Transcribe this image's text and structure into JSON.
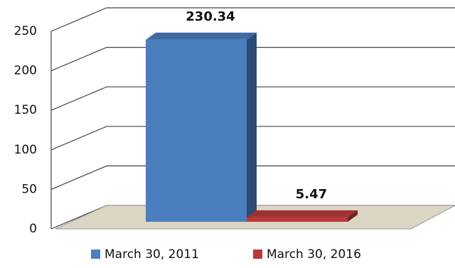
{
  "chart_data": {
    "type": "bar3d",
    "series": [
      {
        "name": "March 30, 2011",
        "color": "#4a7ebf",
        "values": [
          230.34
        ]
      },
      {
        "name": "March 30, 2016",
        "color": "#b9393a",
        "values": [
          5.47
        ]
      }
    ],
    "ylim": [
      0,
      250
    ],
    "yticks": [
      0,
      50,
      100,
      150,
      200,
      250
    ],
    "grid": true,
    "legend": "bottom"
  }
}
